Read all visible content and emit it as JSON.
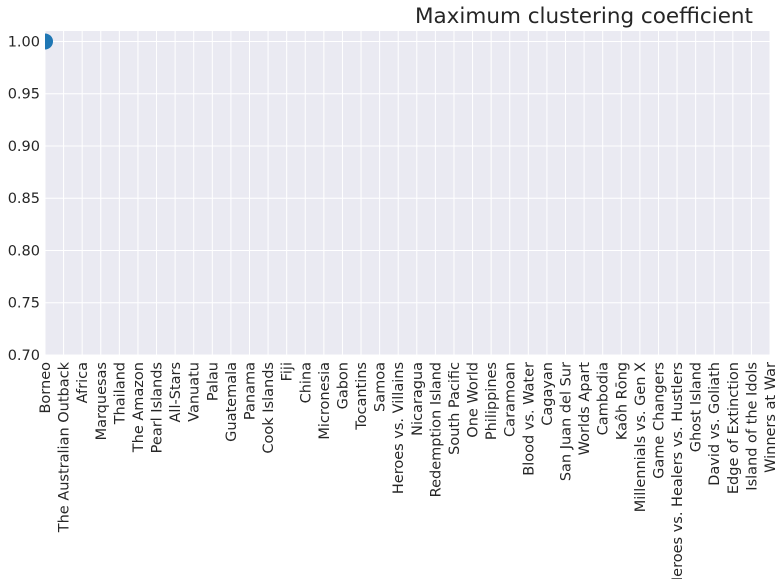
{
  "chart_data": {
    "type": "scatter",
    "title": "Maximum clustering coefficient",
    "xlabel": "",
    "ylabel": "",
    "categories": [
      "Borneo",
      "The Australian Outback",
      "Africa",
      "Marquesas",
      "Thailand",
      "The Amazon",
      "Pearl Islands",
      "All-Stars",
      "Vanuatu",
      "Palau",
      "Guatemala",
      "Panama",
      "Cook Islands",
      "Fiji",
      "China",
      "Micronesia",
      "Gabon",
      "Tocantins",
      "Samoa",
      "Heroes vs. Villains",
      "Nicaragua",
      "Redemption Island",
      "South Pacific",
      "One World",
      "Philippines",
      "Caramoan",
      "Blood vs. Water",
      "Cagayan",
      "San Juan del Sur",
      "Worlds Apart",
      "Cambodia",
      "Kaôh Rōng",
      "Millennials vs. Gen X",
      "Game Changers",
      "Heroes vs. Healers vs. Hustlers",
      "Ghost Island",
      "David vs. Goliath",
      "Edge of Extinction",
      "Island of the Idols",
      "Winners at War"
    ],
    "series": [
      {
        "points": [
          {
            "x": "Borneo",
            "y": 1.0
          }
        ]
      }
    ],
    "ylim": [
      0.7,
      1.01
    ],
    "yticks": [
      "0.70",
      "0.75",
      "0.80",
      "0.85",
      "0.90",
      "0.95",
      "1.00"
    ],
    "yticks_values": [
      0.7,
      0.75,
      0.8,
      0.85,
      0.9,
      0.95,
      1.0
    ],
    "grid": true,
    "legend": "none",
    "colors": {
      "background": "#eaeaf2",
      "grid": "#ffffff",
      "marker": "#1f77b4",
      "text": "#262626"
    }
  }
}
